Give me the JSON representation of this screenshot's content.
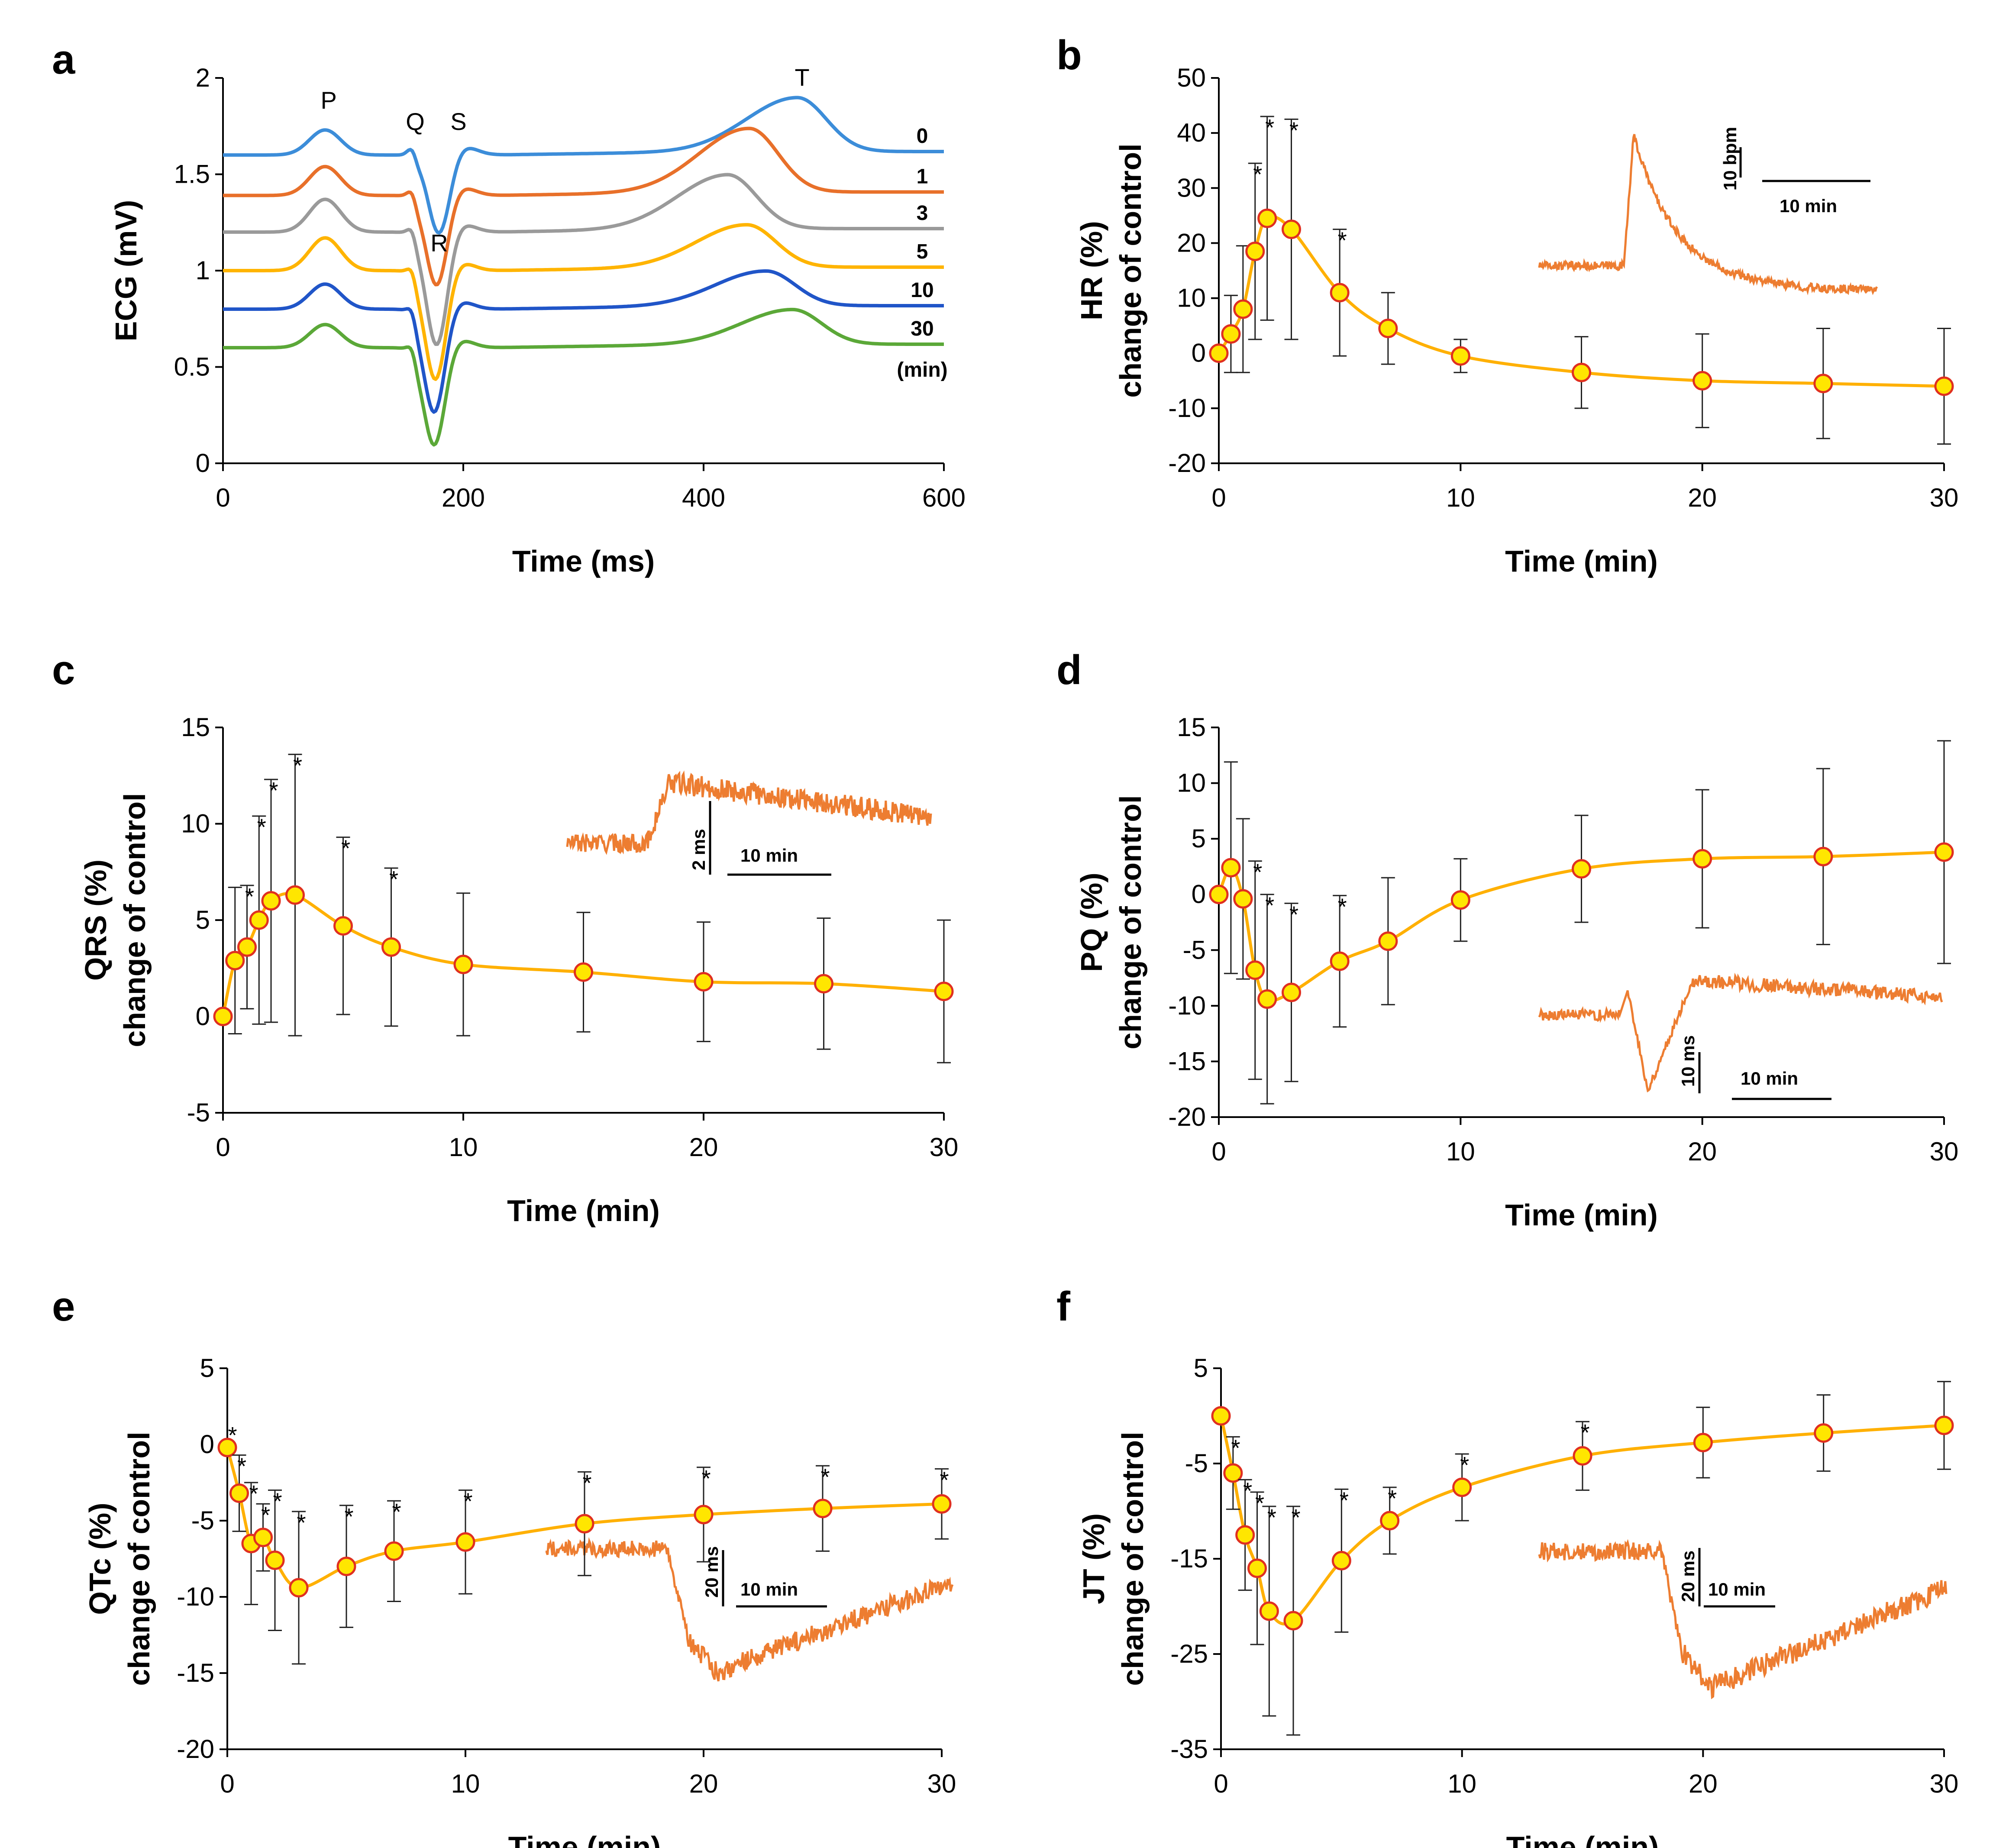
{
  "style": {
    "line_color": "#FFB000",
    "marker_fill": "#FFE600",
    "marker_edge": "#E03020",
    "inset_color": "#ED7D31",
    "errorbar_color": "#222222"
  },
  "chart_data": [
    {
      "id": "a",
      "letter": "a",
      "type": "line",
      "xlabel": "Time (ms)",
      "ylabel": "ECG (mV)",
      "xlim": [
        0,
        600
      ],
      "ylim": [
        0,
        2
      ],
      "xticks": [
        0,
        200,
        400,
        600
      ],
      "xtick_labels": [
        "0",
        "200",
        "400",
        "600"
      ],
      "yticks": [
        0,
        0.5,
        1,
        1.5,
        2
      ],
      "ytick_labels": [
        "0",
        "0.5",
        "1",
        "1.5",
        "2"
      ],
      "wave_labels": [
        {
          "text": "P",
          "x": 88,
          "y": 1.84
        },
        {
          "text": "Q",
          "x": 160,
          "y": 1.73
        },
        {
          "text": "S",
          "x": 196,
          "y": 1.73
        },
        {
          "text": "R",
          "x": 180,
          "y": 1.1
        },
        {
          "text": "T",
          "x": 482,
          "y": 1.96
        }
      ],
      "unit_label": "(min)",
      "series": [
        {
          "name": "0",
          "color": "#3C8DD9",
          "baseline": 1.6,
          "p_amp": 0.13,
          "q": -0.03,
          "r_amp": -0.42,
          "r_time": 180,
          "t_amp": 0.28,
          "t_time": 478
        },
        {
          "name": "1",
          "color": "#E8702A",
          "baseline": 1.39,
          "p_amp": 0.15,
          "q": -0.03,
          "r_amp": -0.48,
          "r_time": 178,
          "t_amp": 0.33,
          "t_time": 438
        },
        {
          "name": "3",
          "color": "#9A9A9A",
          "baseline": 1.2,
          "p_amp": 0.17,
          "q": -0.03,
          "r_amp": -0.6,
          "r_time": 178,
          "t_amp": 0.28,
          "t_time": 420
        },
        {
          "name": "5",
          "color": "#FFB400",
          "baseline": 1.0,
          "p_amp": 0.17,
          "q": -0.03,
          "r_amp": -0.58,
          "r_time": 177,
          "t_amp": 0.22,
          "t_time": 436
        },
        {
          "name": "10",
          "color": "#2055C8",
          "baseline": 0.8,
          "p_amp": 0.13,
          "q": -0.03,
          "r_amp": -0.55,
          "r_time": 176,
          "t_amp": 0.18,
          "t_time": 452
        },
        {
          "name": "30",
          "color": "#5BA838",
          "baseline": 0.6,
          "p_amp": 0.12,
          "q": -0.03,
          "r_amp": -0.52,
          "r_time": 176,
          "t_amp": 0.18,
          "t_time": 474
        }
      ]
    },
    {
      "id": "b",
      "letter": "b",
      "type": "line",
      "xlabel": "Time (min)",
      "ylabel": "HR (%)",
      "ylabel2": "change of control",
      "xlim": [
        0,
        30
      ],
      "ylim": [
        -20,
        50
      ],
      "xticks": [
        0,
        10,
        20,
        30
      ],
      "xtick_labels": [
        "0",
        "10",
        "20",
        "30"
      ],
      "yticks": [
        -20,
        -10,
        0,
        10,
        20,
        30,
        40,
        50
      ],
      "ytick_labels": [
        "-20",
        "-10",
        "0",
        "10",
        "20",
        "30",
        "40",
        "50"
      ],
      "x": [
        0,
        0.5,
        1,
        1.5,
        2,
        3,
        5,
        7,
        10,
        15,
        20,
        25,
        30
      ],
      "y": [
        0,
        3.5,
        8,
        18.5,
        24.5,
        22.5,
        11,
        4.5,
        -0.5,
        -3.5,
        -5,
        -5.5,
        -6
      ],
      "err": [
        0,
        7,
        11.5,
        16,
        18.5,
        20,
        11.5,
        6.5,
        3,
        6.5,
        8.5,
        10,
        10.5
      ],
      "sig": [
        false,
        false,
        false,
        true,
        true,
        true,
        true,
        false,
        false,
        false,
        false,
        false,
        false
      ],
      "inset": {
        "shape": "spike",
        "scale_y": "10 bpm",
        "scale_x": "10 min"
      }
    },
    {
      "id": "c",
      "letter": "c",
      "type": "line",
      "xlabel": "Time (min)",
      "ylabel": "QRS (%)",
      "ylabel2": "change of control",
      "xlim": [
        0,
        30
      ],
      "ylim": [
        -5,
        15
      ],
      "xticks": [
        0,
        10,
        20,
        30
      ],
      "xtick_labels": [
        "0",
        "10",
        "20",
        "30"
      ],
      "yticks": [
        -5,
        0,
        5,
        10,
        15
      ],
      "ytick_labels": [
        "-5",
        "0",
        "5",
        "10",
        "15"
      ],
      "x": [
        0,
        0.5,
        1,
        1.5,
        2,
        3,
        5,
        7,
        10,
        15,
        20,
        25,
        30
      ],
      "y": [
        0,
        2.9,
        3.6,
        5,
        6,
        6.3,
        4.7,
        3.6,
        2.7,
        2.3,
        1.8,
        1.7,
        1.3
      ],
      "err": [
        0,
        3.8,
        3.2,
        5.4,
        6.3,
        7.3,
        4.6,
        4.1,
        3.7,
        3.1,
        3.1,
        3.4,
        3.7
      ],
      "sig": [
        false,
        false,
        true,
        true,
        true,
        true,
        true,
        true,
        false,
        false,
        false,
        false,
        false
      ],
      "inset": {
        "shape": "plateau",
        "scale_y": "2 ms",
        "scale_x": "10 min"
      }
    },
    {
      "id": "d",
      "letter": "d",
      "type": "line",
      "xlabel": "Time (min)",
      "ylabel": "PQ (%)",
      "ylabel2": "change of control",
      "xlim": [
        0,
        30
      ],
      "ylim": [
        -20,
        15
      ],
      "xticks": [
        0,
        10,
        20,
        30
      ],
      "xtick_labels": [
        "0",
        "10",
        "20",
        "30"
      ],
      "yticks": [
        -20,
        -15,
        -10,
        -5,
        0,
        5,
        10,
        15
      ],
      "ytick_labels": [
        "-20",
        "-15",
        "-10",
        "-5",
        "0",
        "5",
        "10",
        "15"
      ],
      "x": [
        0,
        0.5,
        1,
        1.5,
        2,
        3,
        5,
        7,
        10,
        15,
        20,
        25,
        30
      ],
      "y": [
        0,
        2.4,
        -0.4,
        -6.8,
        -9.4,
        -8.8,
        -6,
        -4.2,
        -0.5,
        2.3,
        3.2,
        3.4,
        3.8
      ],
      "err": [
        0,
        9.5,
        7.2,
        9.8,
        9.4,
        8,
        5.9,
        5.7,
        3.7,
        4.8,
        6.2,
        7.9,
        10
      ],
      "sig": [
        false,
        false,
        false,
        true,
        true,
        true,
        true,
        false,
        false,
        false,
        false,
        false,
        false
      ],
      "inset": {
        "shape": "dip",
        "scale_y": "10 ms",
        "scale_x": "10 min"
      }
    },
    {
      "id": "e",
      "letter": "e",
      "type": "line",
      "xlabel": "Time (min)",
      "ylabel": "QTc (%)",
      "ylabel2": "change of control",
      "xlim": [
        0,
        30
      ],
      "ylim": [
        -20,
        5
      ],
      "xticks": [
        0,
        10,
        20,
        30
      ],
      "xtick_labels": [
        "0",
        "10",
        "20",
        "30"
      ],
      "yticks": [
        -20,
        -15,
        -10,
        -5,
        0,
        5
      ],
      "ytick_labels": [
        "-20",
        "-15",
        "-10",
        "-5",
        "0",
        "5"
      ],
      "x": [
        0,
        0.5,
        1,
        1.5,
        2,
        3,
        5,
        7,
        10,
        15,
        20,
        25,
        30
      ],
      "y": [
        -0.2,
        -3.2,
        -6.5,
        -6.1,
        -7.6,
        -9.4,
        -8,
        -7,
        -6.4,
        -5.2,
        -4.6,
        -4.2,
        -3.9
      ],
      "err": [
        0,
        2.5,
        4,
        2.2,
        4.6,
        5,
        4,
        3.3,
        3.4,
        3.4,
        3.1,
        2.8,
        2.3
      ],
      "sig": [
        true,
        true,
        true,
        true,
        true,
        true,
        true,
        true,
        true,
        true,
        true,
        true,
        true
      ],
      "inset": {
        "shape": "drop",
        "scale_y": "20 ms",
        "scale_x": "10 min"
      }
    },
    {
      "id": "f",
      "letter": "f",
      "type": "line",
      "xlabel": "Time (min)",
      "ylabel": "JT (%)",
      "ylabel2": "change of control",
      "xlim": [
        0,
        30
      ],
      "ylim": [
        -35,
        5
      ],
      "xticks": [
        0,
        10,
        20,
        30
      ],
      "xtick_labels": [
        "0",
        "10",
        "20",
        "30"
      ],
      "yticks": [
        -35,
        -25,
        -15,
        -5,
        5
      ],
      "ytick_labels": [
        "-35",
        "-25",
        "-15",
        "-5",
        "5"
      ],
      "x": [
        0,
        0.5,
        1,
        1.5,
        2,
        3,
        5,
        7,
        10,
        15,
        20,
        25,
        30
      ],
      "y": [
        0,
        -6,
        -12.5,
        -16,
        -20.5,
        -21.5,
        -15.2,
        -11,
        -7.5,
        -4.2,
        -2.8,
        -1.8,
        -1
      ],
      "err": [
        0,
        3.8,
        5.8,
        8,
        11,
        12,
        7.5,
        3.5,
        3.5,
        3.6,
        3.7,
        4,
        4.6
      ],
      "sig": [
        false,
        true,
        true,
        true,
        true,
        true,
        true,
        true,
        true,
        true,
        false,
        false,
        false
      ],
      "inset": {
        "shape": "drop",
        "scale_y": "20 ms",
        "scale_x": "10 min"
      }
    }
  ]
}
